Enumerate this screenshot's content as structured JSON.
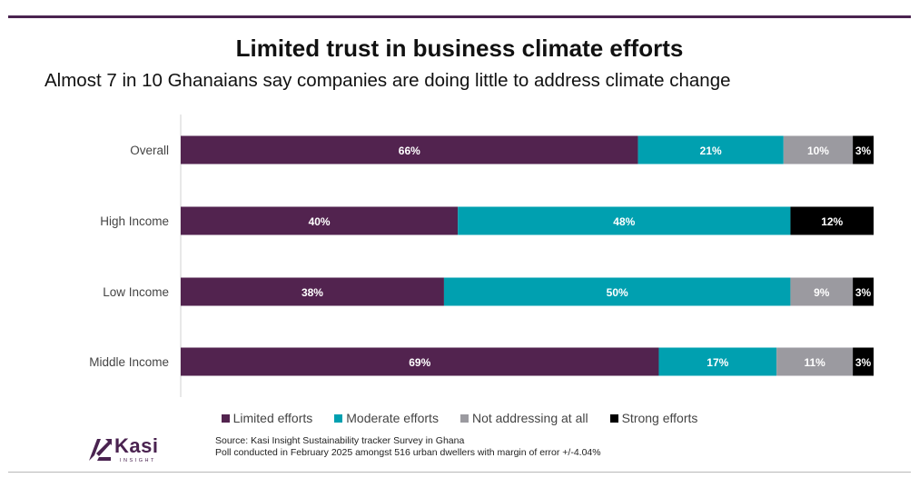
{
  "title": "Limited trust in business climate efforts",
  "subtitle": "Almost 7 in 10 Ghanaians say companies are doing little to address climate change",
  "colors": {
    "limited": "#52234f",
    "moderate": "#00a0b0",
    "not_addressing": "#9b9aa0",
    "strong": "#000000",
    "brand": "#4a2350"
  },
  "chart_data": {
    "type": "bar",
    "orientation": "horizontal",
    "stacked": true,
    "title": "Limited trust in business climate efforts",
    "xlim": [
      0,
      100
    ],
    "categories": [
      "Overall",
      "High Income",
      "Low Income",
      "Middle Income"
    ],
    "series": [
      {
        "name": "Limited efforts",
        "values": [
          66,
          40,
          38,
          69
        ],
        "labels": [
          "66%",
          "40%",
          "38%",
          "69%"
        ]
      },
      {
        "name": "Moderate efforts",
        "values": [
          21,
          48,
          50,
          17
        ],
        "labels": [
          "21%",
          "48%",
          "50%",
          "17%"
        ]
      },
      {
        "name": "Not addressing at all",
        "values": [
          10,
          0,
          9,
          11
        ],
        "labels": [
          "10%",
          "",
          "9%",
          "11%"
        ]
      },
      {
        "name": "Strong efforts",
        "values": [
          3,
          12,
          3,
          3
        ],
        "labels": [
          "3%",
          "12%",
          "3%",
          "3%"
        ]
      }
    ],
    "legend_position": "bottom"
  },
  "legend": [
    {
      "label": "Limited efforts",
      "color": "#52234f"
    },
    {
      "label": "Moderate efforts",
      "color": "#00a0b0"
    },
    {
      "label": "Not addressing at all",
      "color": "#9b9aa0"
    },
    {
      "label": "Strong efforts",
      "color": "#000000"
    }
  ],
  "logo": {
    "word": "Kasi",
    "tagline": "INSIGHT"
  },
  "source": {
    "line1": "Source: Kasi Insight Sustainability tracker Survey in Ghana",
    "line2": "Poll conducted in February 2025 amongst 516 urban dwellers with margin of error +/-4.04%"
  }
}
